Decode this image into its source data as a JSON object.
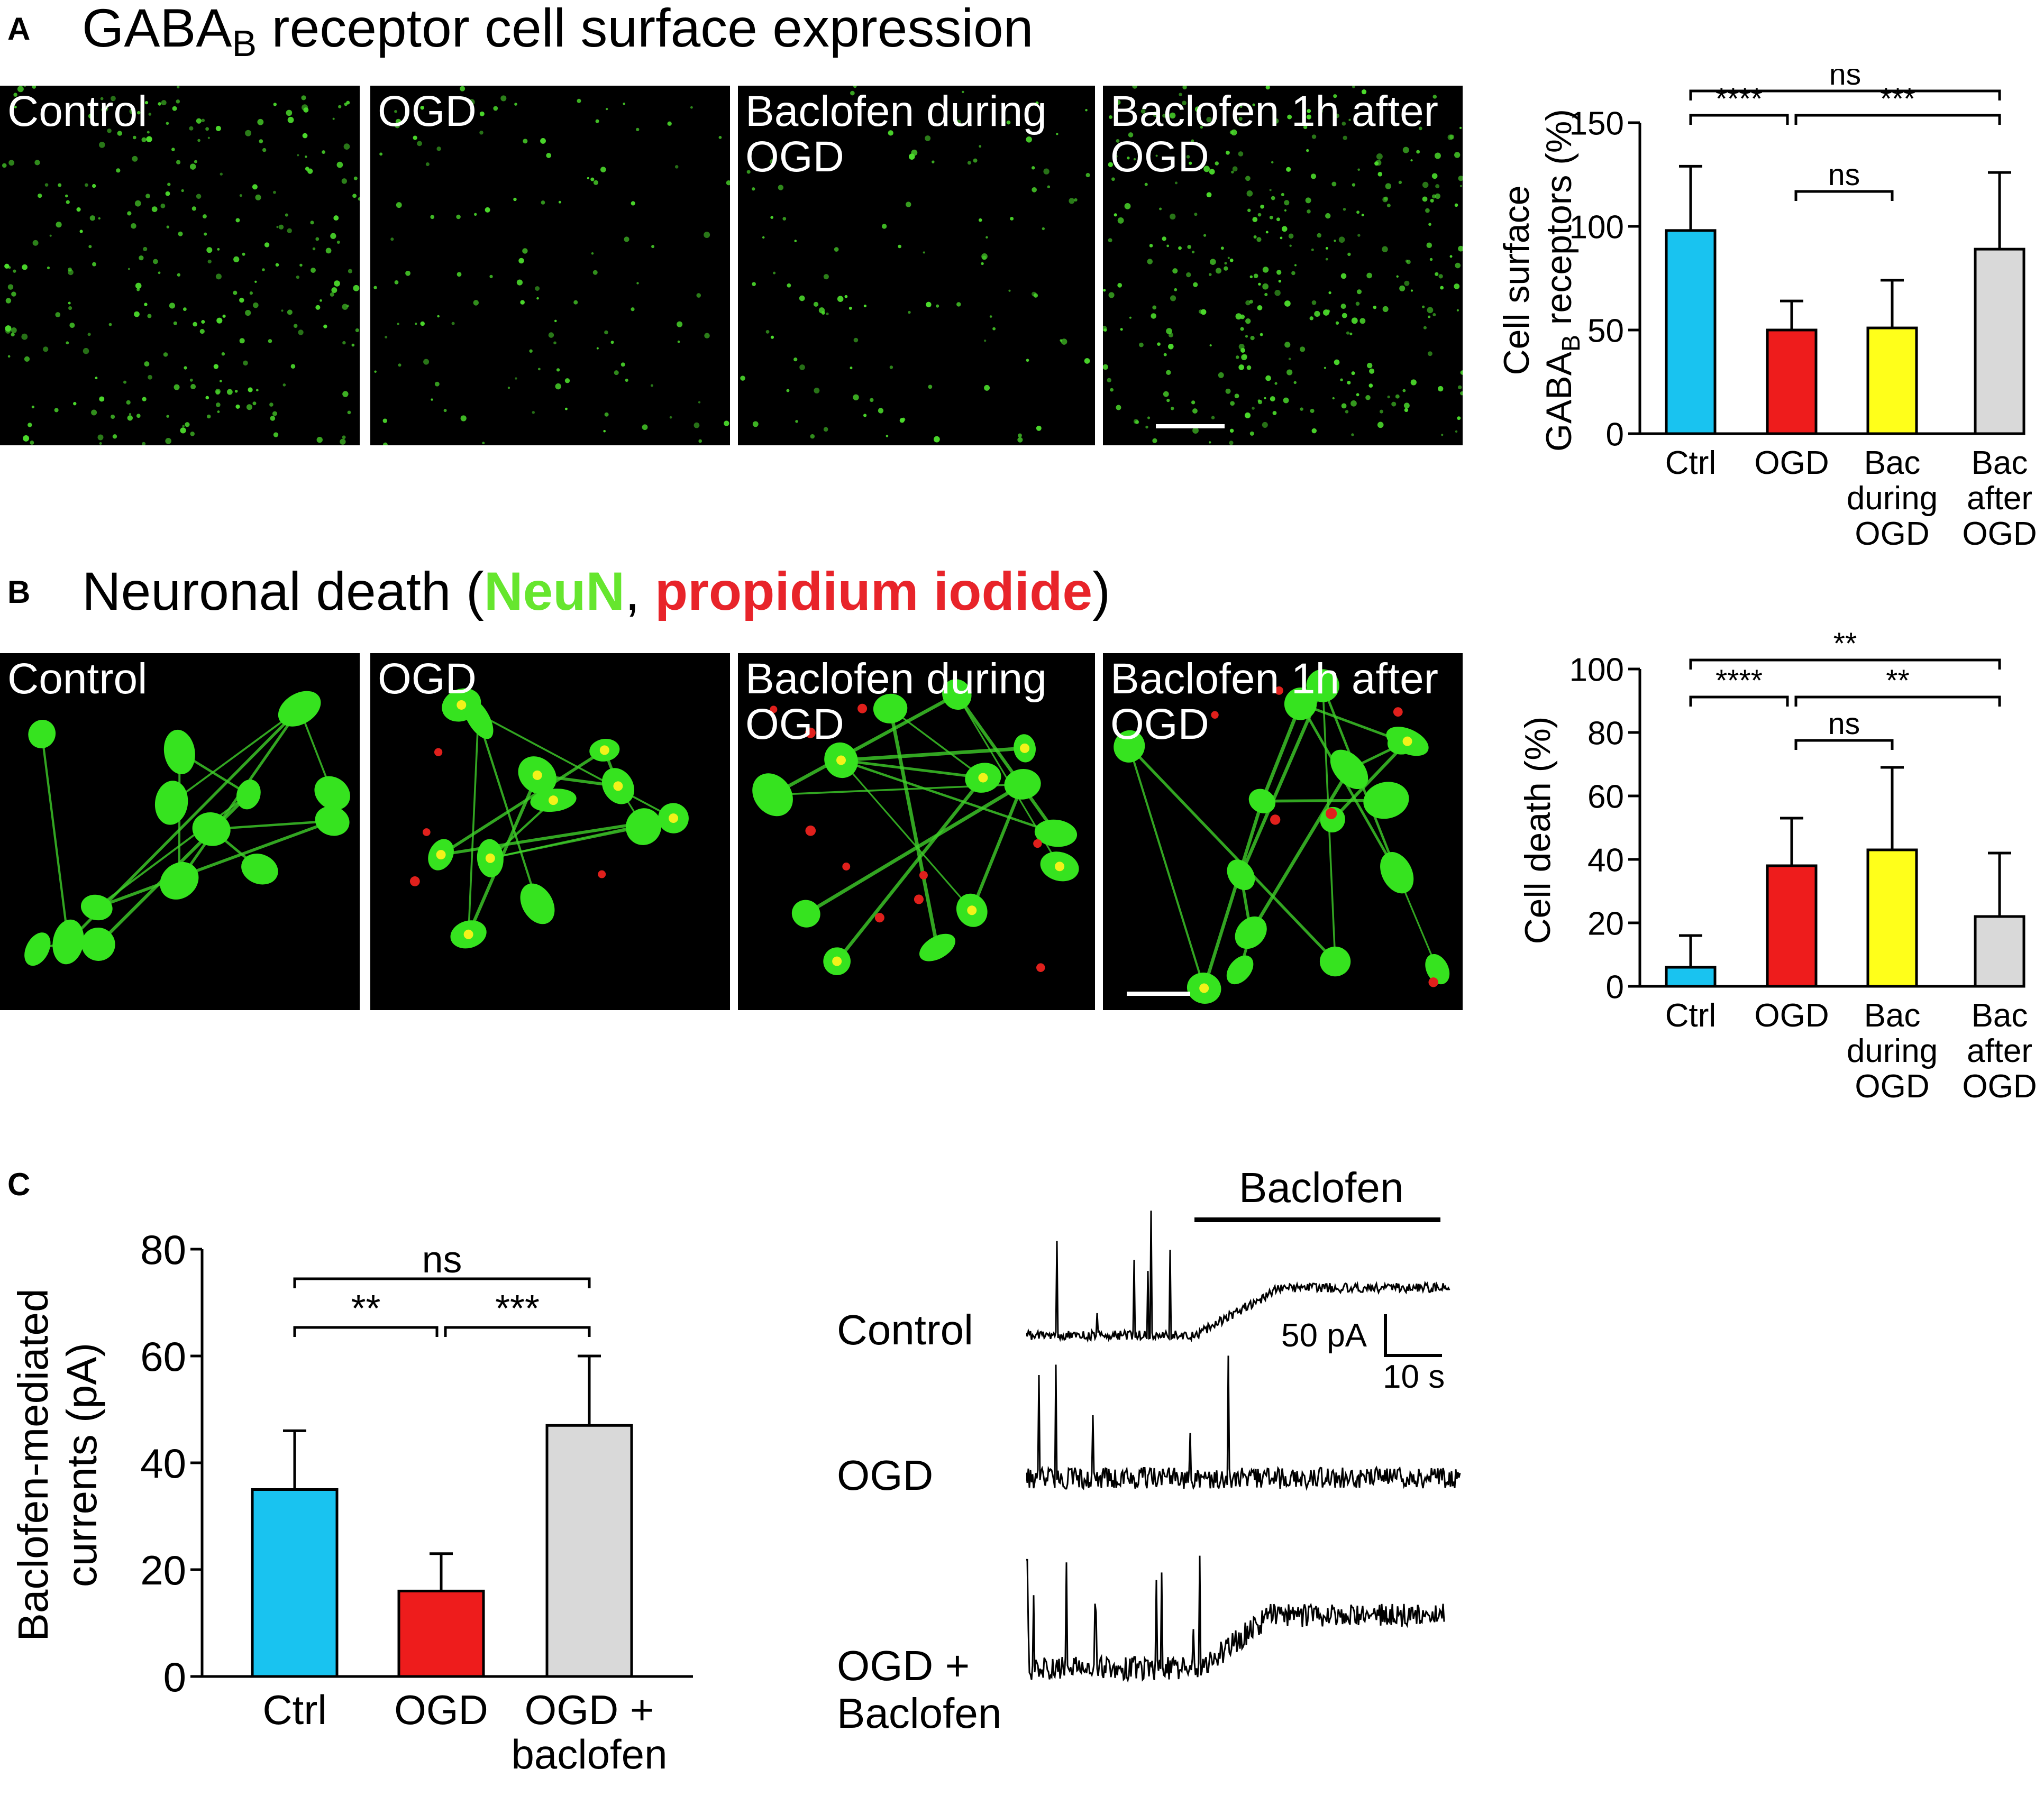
{
  "panels": {
    "A": {
      "letter": "A",
      "title": "GABA",
      "title_sub": "B",
      "title_rest": " receptor cell surface expression",
      "images": [
        {
          "label": "Control"
        },
        {
          "label": "OGD"
        },
        {
          "label": "Baclofen during\nOGD"
        },
        {
          "label": "Baclofen 1h after\nOGD"
        }
      ]
    },
    "B": {
      "letter": "B",
      "title_prefix": "Neuronal death (",
      "title_green": "NeuN",
      "title_comma": ", ",
      "title_red": "propidium iodide",
      "title_suffix": ")",
      "colors": {
        "green": "#66e62e",
        "red": "#e8242a"
      },
      "images": [
        {
          "label": "Control"
        },
        {
          "label": "OGD"
        },
        {
          "label": "Baclofen during\nOGD"
        },
        {
          "label": "Baclofen 1h after\nOGD"
        }
      ]
    },
    "C": {
      "letter": "C",
      "traces": {
        "drug_label": "Baclofen",
        "labels": [
          "Control",
          "OGD",
          "OGD +\nBaclofen"
        ],
        "scale_y": "50 pA",
        "scale_x": "10 s"
      }
    }
  },
  "chart_data": [
    {
      "id": "A",
      "type": "bar",
      "categories": [
        "Ctrl",
        "OGD",
        "Bac\nduring\nOGD",
        "Bac\nafter\nOGD"
      ],
      "values": [
        98,
        50,
        51,
        89
      ],
      "errors": [
        31,
        14,
        23,
        37
      ],
      "colors": [
        "#19c3f0",
        "#ee1c1c",
        "#ffff1a",
        "#d9d9d9"
      ],
      "ylabel_line1": "Cell surface",
      "ylabel_line2_pre": "GABA",
      "ylabel_line2_sub": "B",
      "ylabel_line2_post": " receptors (%)",
      "ylim": [
        0,
        150
      ],
      "yticks": [
        0,
        50,
        100,
        150
      ],
      "significance": [
        {
          "from": 0,
          "to": 3,
          "text": "ns",
          "level": 2
        },
        {
          "from": 0,
          "to": 1,
          "text": "****",
          "level": 1
        },
        {
          "from": 1,
          "to": 3,
          "text": "***",
          "level": 1
        },
        {
          "from": 1,
          "to": 2,
          "text": "ns",
          "level": 0
        }
      ]
    },
    {
      "id": "B",
      "type": "bar",
      "categories": [
        "Ctrl",
        "OGD",
        "Bac\nduring\nOGD",
        "Bac\nafter\nOGD"
      ],
      "values": [
        6,
        38,
        43,
        22
      ],
      "errors": [
        10,
        15,
        26,
        20
      ],
      "colors": [
        "#19c3f0",
        "#ee1c1c",
        "#ffff1a",
        "#d9d9d9"
      ],
      "ylabel": "Cell death (%)",
      "ylim": [
        0,
        100
      ],
      "yticks": [
        0,
        20,
        40,
        60,
        80,
        100
      ],
      "significance": [
        {
          "from": 0,
          "to": 3,
          "text": "**",
          "level": 2
        },
        {
          "from": 0,
          "to": 1,
          "text": "****",
          "level": 1
        },
        {
          "from": 1,
          "to": 3,
          "text": "**",
          "level": 1
        },
        {
          "from": 1,
          "to": 2,
          "text": "ns",
          "level": 0
        }
      ]
    },
    {
      "id": "C",
      "type": "bar",
      "categories": [
        "Ctrl",
        "OGD",
        "OGD +\nbaclofen"
      ],
      "values": [
        35,
        16,
        47
      ],
      "errors": [
        11,
        7,
        13
      ],
      "colors": [
        "#19c3f0",
        "#ee1c1c",
        "#d9d9d9"
      ],
      "ylabel_line1": "Baclofen-mediated",
      "ylabel_line2": "currents (pA)",
      "ylim": [
        0,
        80
      ],
      "yticks": [
        0,
        20,
        40,
        60,
        80
      ],
      "significance": [
        {
          "from": 0,
          "to": 2,
          "text": "ns",
          "level": 1
        },
        {
          "from": 0,
          "to": 1,
          "text": "**",
          "level": 0
        },
        {
          "from": 1,
          "to": 2,
          "text": "***",
          "level": 0
        }
      ]
    }
  ]
}
